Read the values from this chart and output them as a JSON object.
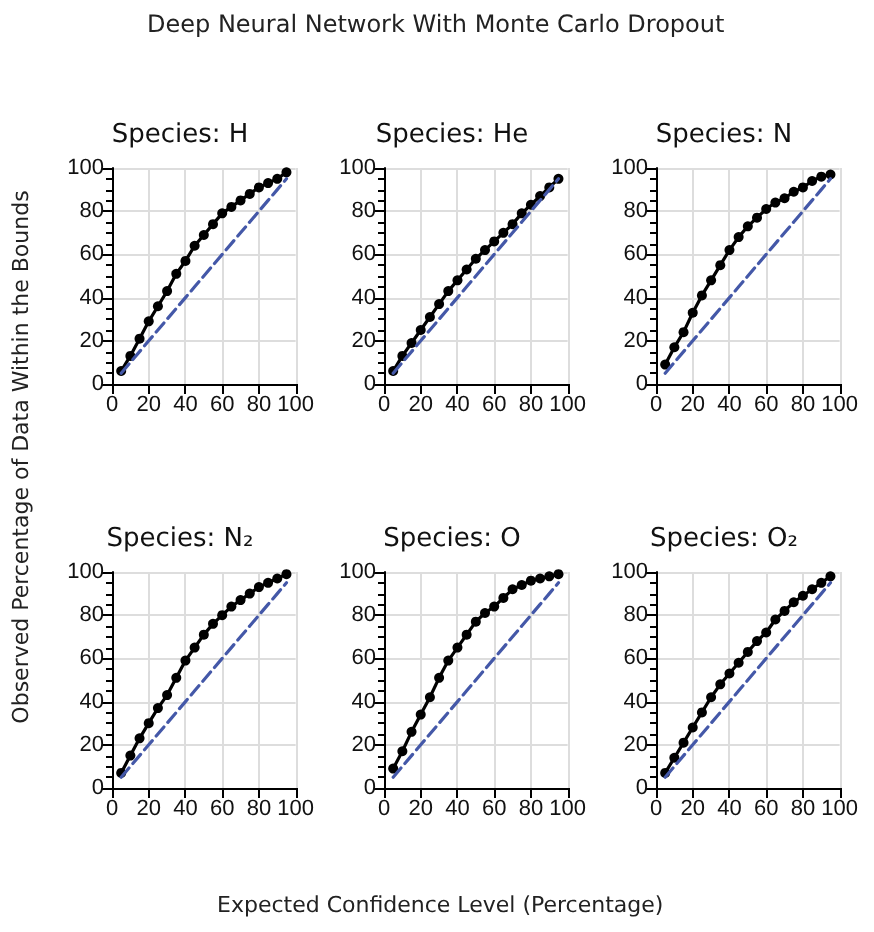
{
  "chart_data": [
    {
      "type": "line",
      "title": "Species: H",
      "annotations": [
        "Deep Neural Network With Monte Carlo Dropout"
      ],
      "ylabel": "Observed Percentage of Data Within the Bounds",
      "x": [
        5,
        10,
        15,
        20,
        25,
        30,
        35,
        40,
        45,
        50,
        55,
        60,
        65,
        70,
        75,
        80,
        85,
        90,
        95
      ],
      "xlim": [
        0,
        100
      ],
      "ylim": [
        0,
        100
      ],
      "xticks": [
        0,
        20,
        40,
        60,
        80,
        100
      ],
      "yticks": [
        0,
        20,
        40,
        60,
        80,
        100
      ],
      "grid": true,
      "marker": "circle",
      "series": [
        {
          "color": "#000000",
          "values": [
            6,
            13,
            21,
            29,
            36,
            43,
            51,
            57,
            64,
            69,
            74,
            79,
            82,
            85,
            88,
            91,
            93,
            95,
            98
          ]
        },
        {
          "color": "#4458a8",
          "line_style": "dashed",
          "marker": "none",
          "values": [
            5,
            10,
            15,
            20,
            25,
            30,
            35,
            40,
            45,
            50,
            55,
            60,
            65,
            70,
            75,
            80,
            85,
            90,
            95
          ]
        }
      ]
    },
    {
      "type": "line",
      "title": "Species: He",
      "x": [
        5,
        10,
        15,
        20,
        25,
        30,
        35,
        40,
        45,
        50,
        55,
        60,
        65,
        70,
        75,
        80,
        85,
        90,
        95
      ],
      "xlim": [
        0,
        100
      ],
      "ylim": [
        0,
        100
      ],
      "xticks": [
        0,
        20,
        40,
        60,
        80,
        100
      ],
      "yticks": [
        0,
        20,
        40,
        60,
        80,
        100
      ],
      "grid": true,
      "marker": "circle",
      "series": [
        {
          "color": "#000000",
          "values": [
            6,
            13,
            19,
            25,
            31,
            37,
            43,
            48,
            53,
            58,
            62,
            66,
            70,
            74,
            79,
            83,
            87,
            91,
            95
          ]
        },
        {
          "color": "#4458a8",
          "line_style": "dashed",
          "marker": "none",
          "values": [
            5,
            10,
            15,
            20,
            25,
            30,
            35,
            40,
            45,
            50,
            55,
            60,
            65,
            70,
            75,
            80,
            85,
            90,
            95
          ]
        }
      ]
    },
    {
      "type": "line",
      "title": "Species: N",
      "x": [
        5,
        10,
        15,
        20,
        25,
        30,
        35,
        40,
        45,
        50,
        55,
        60,
        65,
        70,
        75,
        80,
        85,
        90,
        95
      ],
      "xlim": [
        0,
        100
      ],
      "ylim": [
        0,
        100
      ],
      "xticks": [
        0,
        20,
        40,
        60,
        80,
        100
      ],
      "yticks": [
        0,
        20,
        40,
        60,
        80,
        100
      ],
      "grid": true,
      "marker": "circle",
      "series": [
        {
          "color": "#000000",
          "values": [
            9,
            17,
            24,
            33,
            41,
            48,
            55,
            62,
            68,
            73,
            77,
            81,
            84,
            86,
            89,
            91,
            94,
            96,
            97
          ]
        },
        {
          "color": "#4458a8",
          "line_style": "dashed",
          "marker": "none",
          "values": [
            5,
            10,
            15,
            20,
            25,
            30,
            35,
            40,
            45,
            50,
            55,
            60,
            65,
            70,
            75,
            80,
            85,
            90,
            95
          ]
        }
      ]
    },
    {
      "type": "line",
      "title": "Species: N₂",
      "x": [
        5,
        10,
        15,
        20,
        25,
        30,
        35,
        40,
        45,
        50,
        55,
        60,
        65,
        70,
        75,
        80,
        85,
        90,
        95
      ],
      "xlim": [
        0,
        100
      ],
      "ylim": [
        0,
        100
      ],
      "xticks": [
        0,
        20,
        40,
        60,
        80,
        100
      ],
      "yticks": [
        0,
        20,
        40,
        60,
        80,
        100
      ],
      "grid": true,
      "marker": "circle",
      "series": [
        {
          "color": "#000000",
          "values": [
            7,
            15,
            23,
            30,
            37,
            43,
            51,
            59,
            65,
            71,
            76,
            80,
            84,
            87,
            90,
            93,
            95,
            97,
            99
          ]
        },
        {
          "color": "#4458a8",
          "line_style": "dashed",
          "marker": "none",
          "values": [
            5,
            10,
            15,
            20,
            25,
            30,
            35,
            40,
            45,
            50,
            55,
            60,
            65,
            70,
            75,
            80,
            85,
            90,
            95
          ]
        }
      ]
    },
    {
      "type": "line",
      "title": "Species: O",
      "xlabel": "Expected Confidence Level (Percentage)",
      "x": [
        5,
        10,
        15,
        20,
        25,
        30,
        35,
        40,
        45,
        50,
        55,
        60,
        65,
        70,
        75,
        80,
        85,
        90,
        95
      ],
      "xlim": [
        0,
        100
      ],
      "ylim": [
        0,
        100
      ],
      "xticks": [
        0,
        20,
        40,
        60,
        80,
        100
      ],
      "yticks": [
        0,
        20,
        40,
        60,
        80,
        100
      ],
      "grid": true,
      "marker": "circle",
      "series": [
        {
          "color": "#000000",
          "values": [
            9,
            17,
            26,
            34,
            42,
            51,
            59,
            65,
            71,
            77,
            81,
            84,
            88,
            92,
            94,
            96,
            97,
            98,
            99
          ]
        },
        {
          "color": "#4458a8",
          "line_style": "dashed",
          "marker": "none",
          "values": [
            5,
            10,
            15,
            20,
            25,
            30,
            35,
            40,
            45,
            50,
            55,
            60,
            65,
            70,
            75,
            80,
            85,
            90,
            95
          ]
        }
      ]
    },
    {
      "type": "line",
      "title": "Species: O₂",
      "x": [
        5,
        10,
        15,
        20,
        25,
        30,
        35,
        40,
        45,
        50,
        55,
        60,
        65,
        70,
        75,
        80,
        85,
        90,
        95
      ],
      "xlim": [
        0,
        100
      ],
      "ylim": [
        0,
        100
      ],
      "xticks": [
        0,
        20,
        40,
        60,
        80,
        100
      ],
      "yticks": [
        0,
        20,
        40,
        60,
        80,
        100
      ],
      "grid": true,
      "marker": "circle",
      "series": [
        {
          "color": "#000000",
          "values": [
            7,
            14,
            21,
            28,
            35,
            42,
            48,
            53,
            58,
            63,
            68,
            72,
            78,
            82,
            86,
            89,
            92,
            95,
            98
          ]
        },
        {
          "color": "#4458a8",
          "line_style": "dashed",
          "marker": "none",
          "values": [
            5,
            10,
            15,
            20,
            25,
            30,
            35,
            40,
            45,
            50,
            55,
            60,
            65,
            70,
            75,
            80,
            85,
            90,
            95
          ]
        }
      ]
    }
  ]
}
